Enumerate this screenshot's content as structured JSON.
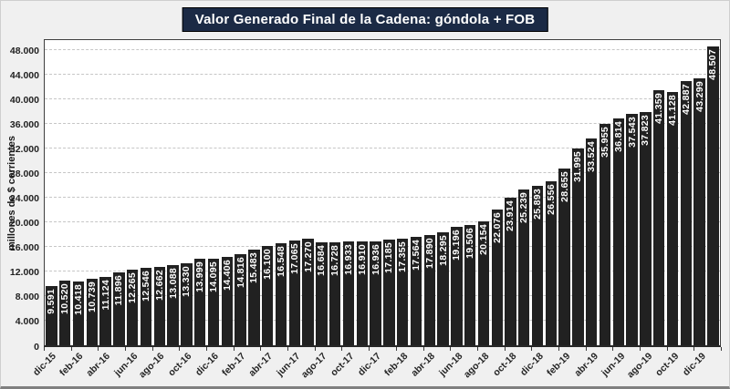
{
  "chart_data": {
    "type": "bar",
    "title": "Valor Generado Final de la Cadena: góndola + FOB",
    "ylabel": "millones de $ corrientes",
    "xlabel": "",
    "ylim": [
      0,
      50000
    ],
    "grid": "horizontal-dashed",
    "legend": "none",
    "y_ticks": {
      "values": [
        0,
        4000,
        8000,
        12000,
        16000,
        20000,
        24000,
        28000,
        32000,
        36000,
        40000,
        44000,
        48000
      ],
      "labels": [
        "0",
        "4.000",
        "8.000",
        "12.000",
        "16.000",
        "20.000",
        "24.000",
        "28.000",
        "32.000",
        "36.000",
        "40.000",
        "44.000",
        "48.000"
      ]
    },
    "x_tick_labels": [
      "dic-15",
      "feb-16",
      "abr-16",
      "jun-16",
      "ago-16",
      "oct-16",
      "dic-16",
      "feb-17",
      "abr-17",
      "jun-17",
      "ago-17",
      "oct-17",
      "dic-17",
      "feb-18",
      "abr-18",
      "jun-18",
      "ago-18",
      "oct-18",
      "dic-18",
      "feb-19",
      "abr-19",
      "jun-19",
      "ago-19",
      "oct-19",
      "dic-19"
    ],
    "x_label_interval": 2,
    "values": [
      9591,
      10520,
      10418,
      10739,
      11124,
      11896,
      12265,
      12546,
      12662,
      13088,
      13330,
      13999,
      14095,
      14406,
      14816,
      15483,
      16100,
      16548,
      17065,
      17270,
      16684,
      16728,
      16933,
      16910,
      16936,
      17185,
      17355,
      17564,
      17890,
      18295,
      19196,
      19506,
      20154,
      22076,
      23914,
      25239,
      25893,
      26556,
      28655,
      31995,
      33524,
      35955,
      36814,
      37543,
      37823,
      41359,
      41128,
      42887,
      43299,
      48507
    ],
    "bar_labels": [
      "9.591",
      "10.520",
      "10.418",
      "10.739",
      "11.124",
      "11.896",
      "12.265",
      "12.546",
      "12.662",
      "13.088",
      "13.330",
      "13.999",
      "14.095",
      "14.406",
      "14.816",
      "15.483",
      "16.100",
      "16.548",
      "17.065",
      "17.270",
      "16.684",
      "16.728",
      "16.933",
      "16.910",
      "16.936",
      "17.185",
      "17.355",
      "17.564",
      "17.890",
      "18.295",
      "19.196",
      "19.506",
      "20.154",
      "22.076",
      "23.914",
      "25.239",
      "25.893",
      "26.556",
      "28.655",
      "31.995",
      "33.524",
      "35.955",
      "36.814",
      "37.543",
      "37.823",
      "41.359",
      "41.128",
      "42.887",
      "43.299",
      "48.507"
    ],
    "colors": {
      "bar": "#212121",
      "bar_label": "#ffffff",
      "title_bg": "#1b2a45",
      "title_text": "#ffffff",
      "plot_bg": "#ffffff",
      "chart_bg": "#f0f0f0",
      "gridline": "#c6c6c6",
      "axis_text": "#1f1f1f"
    }
  }
}
